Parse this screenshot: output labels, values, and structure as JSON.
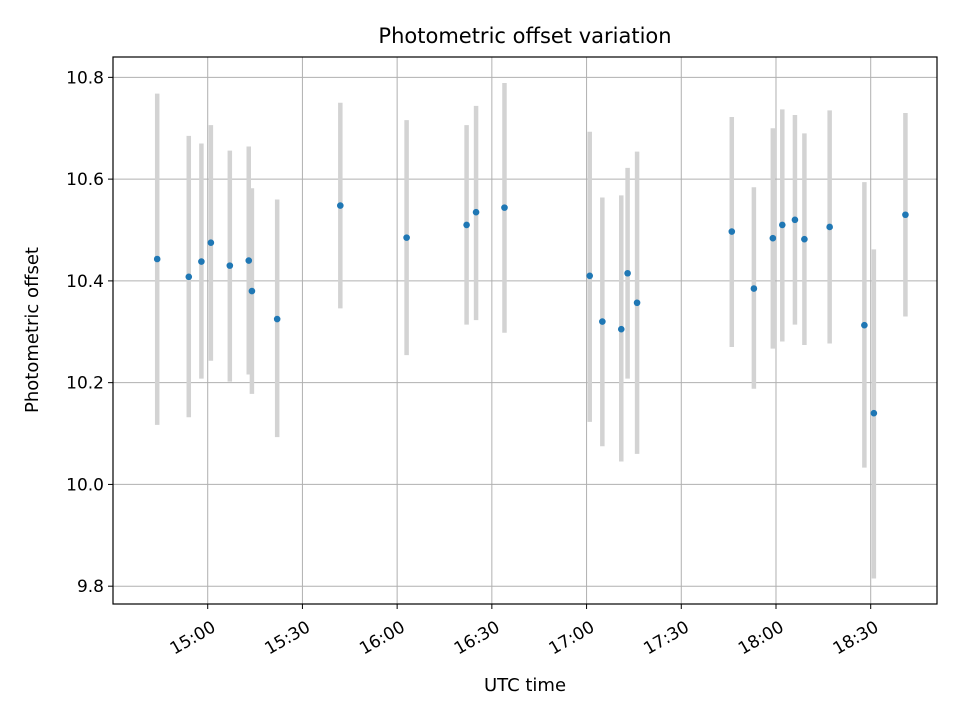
{
  "chart_data": {
    "type": "scatter",
    "title": "Photometric offset variation",
    "xlabel": "UTC time",
    "ylabel": "Photometric offset",
    "xlim": [
      "14:30",
      "18:51"
    ],
    "ylim": [
      9.765,
      10.84
    ],
    "x_ticks": [
      "15:00",
      "15:30",
      "16:00",
      "16:30",
      "17:00",
      "17:30",
      "18:00",
      "18:30"
    ],
    "y_ticks": [
      9.8,
      10.0,
      10.2,
      10.4,
      10.6,
      10.8
    ],
    "grid": true,
    "legend": "none",
    "colors": {
      "point": "#1f77b4",
      "error_bar": "#d3d3d3",
      "grid": "#b0b0b0"
    },
    "points": [
      {
        "x": "14:44",
        "y": 10.443,
        "err_low": 10.117,
        "err_high": 10.768
      },
      {
        "x": "14:54",
        "y": 10.408,
        "err_low": 10.132,
        "err_high": 10.685
      },
      {
        "x": "14:58",
        "y": 10.438,
        "err_low": 10.208,
        "err_high": 10.67
      },
      {
        "x": "15:01",
        "y": 10.475,
        "err_low": 10.243,
        "err_high": 10.706
      },
      {
        "x": "15:07",
        "y": 10.43,
        "err_low": 10.202,
        "err_high": 10.656
      },
      {
        "x": "15:13",
        "y": 10.44,
        "err_low": 10.216,
        "err_high": 10.664
      },
      {
        "x": "15:14",
        "y": 10.38,
        "err_low": 10.178,
        "err_high": 10.582
      },
      {
        "x": "15:22",
        "y": 10.325,
        "err_low": 10.093,
        "err_high": 10.56
      },
      {
        "x": "15:42",
        "y": 10.548,
        "err_low": 10.346,
        "err_high": 10.75
      },
      {
        "x": "16:03",
        "y": 10.485,
        "err_low": 10.254,
        "err_high": 10.716
      },
      {
        "x": "16:22",
        "y": 10.51,
        "err_low": 10.314,
        "err_high": 10.706
      },
      {
        "x": "16:25",
        "y": 10.535,
        "err_low": 10.323,
        "err_high": 10.744
      },
      {
        "x": "16:34",
        "y": 10.544,
        "err_low": 10.298,
        "err_high": 10.789
      },
      {
        "x": "17:01",
        "y": 10.41,
        "err_low": 10.123,
        "err_high": 10.693
      },
      {
        "x": "17:05",
        "y": 10.32,
        "err_low": 10.075,
        "err_high": 10.564
      },
      {
        "x": "17:11",
        "y": 10.305,
        "err_low": 10.045,
        "err_high": 10.568
      },
      {
        "x": "17:13",
        "y": 10.415,
        "err_low": 10.208,
        "err_high": 10.622
      },
      {
        "x": "17:16",
        "y": 10.357,
        "err_low": 10.06,
        "err_high": 10.654
      },
      {
        "x": "17:46",
        "y": 10.497,
        "err_low": 10.27,
        "err_high": 10.722
      },
      {
        "x": "17:53",
        "y": 10.385,
        "err_low": 10.188,
        "err_high": 10.584
      },
      {
        "x": "17:59",
        "y": 10.484,
        "err_low": 10.267,
        "err_high": 10.7
      },
      {
        "x": "18:02",
        "y": 10.51,
        "err_low": 10.281,
        "err_high": 10.737
      },
      {
        "x": "18:06",
        "y": 10.52,
        "err_low": 10.314,
        "err_high": 10.726
      },
      {
        "x": "18:09",
        "y": 10.482,
        "err_low": 10.274,
        "err_high": 10.69
      },
      {
        "x": "18:17",
        "y": 10.506,
        "err_low": 10.277,
        "err_high": 10.735
      },
      {
        "x": "18:28",
        "y": 10.313,
        "err_low": 10.033,
        "err_high": 10.594
      },
      {
        "x": "18:31",
        "y": 10.14,
        "err_low": 9.815,
        "err_high": 10.462
      },
      {
        "x": "18:41",
        "y": 10.53,
        "err_low": 10.33,
        "err_high": 10.73
      }
    ]
  }
}
